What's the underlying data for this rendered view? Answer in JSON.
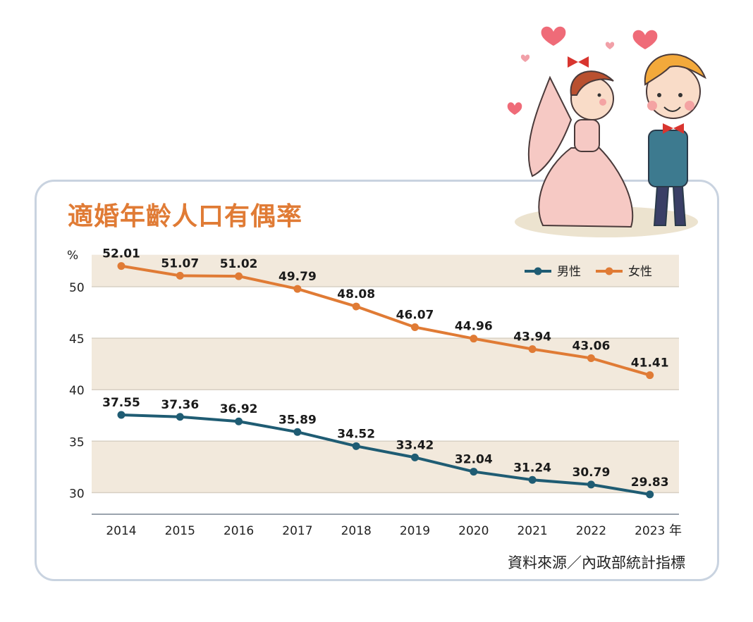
{
  "page": {
    "title": "適婚年齡人口有偶率",
    "source": "資料來源／內政部統計指標"
  },
  "chart_data": {
    "type": "line",
    "title": "適婚年齡人口有偶率",
    "ylabel": "%",
    "xlabel": "年",
    "x": [
      "2014",
      "2015",
      "2016",
      "2017",
      "2018",
      "2019",
      "2020",
      "2021",
      "2022",
      "2023"
    ],
    "ylim": [
      28,
      54
    ],
    "yticks": [
      30,
      35,
      40,
      45,
      50
    ],
    "legend_position": "top-right",
    "series": [
      {
        "name": "男性",
        "color": "#1f5c73",
        "values": [
          37.55,
          37.36,
          36.92,
          35.89,
          34.52,
          33.42,
          32.04,
          31.24,
          30.79,
          29.83
        ],
        "labels": [
          "37.55",
          "37.36",
          "36.92",
          "35.89",
          "34.52",
          "33.42",
          "32.04",
          "31.24",
          "30.79",
          "29.83"
        ]
      },
      {
        "name": "女性",
        "color": "#e07b35",
        "values": [
          52.01,
          51.07,
          51.02,
          49.79,
          48.08,
          46.07,
          44.96,
          43.94,
          43.06,
          41.41
        ],
        "labels": [
          "52.01",
          "51.07",
          "51.02",
          "49.79",
          "48.08",
          "46.07",
          "44.96",
          "43.94",
          "43.06",
          "41.41"
        ]
      }
    ]
  }
}
